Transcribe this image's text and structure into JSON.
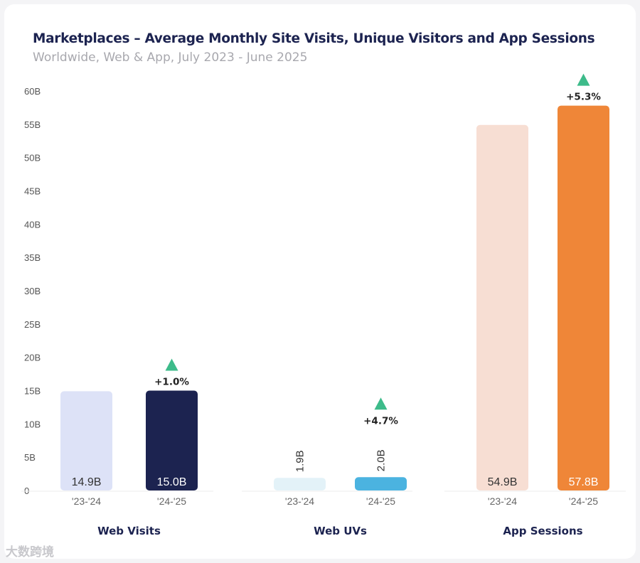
{
  "header": {
    "title": "Marketplaces – Average Monthly Site Visits, Unique Visitors and App Sessions",
    "subtitle": "Worldwide, Web & App, July 2023 - June 2025"
  },
  "watermark": "大数跨境",
  "chart_data": {
    "type": "bar",
    "title": "Marketplaces – Average Monthly Site Visits, Unique Visitors and App Sessions",
    "subtitle": "Worldwide, Web & App, July 2023 - June 2025",
    "ylim": [
      0,
      60
    ],
    "yticks": [
      0,
      5,
      10,
      15,
      20,
      25,
      30,
      35,
      40,
      45,
      50,
      55,
      60
    ],
    "ytick_labels": [
      "0",
      "5B",
      "10B",
      "15B",
      "20B",
      "25B",
      "30B",
      "35B",
      "40B",
      "45B",
      "50B",
      "55B",
      "60B"
    ],
    "grid": false,
    "groups": [
      {
        "name": "Web Visits",
        "bars": [
          {
            "period": "'23-'24",
            "value": 14.9,
            "label": "14.9B",
            "color": "#dde2f7"
          },
          {
            "period": "'24-'25",
            "value": 15.0,
            "label": "15.0B",
            "color": "#1c2350"
          }
        ],
        "change": "+1.0%"
      },
      {
        "name": "Web UVs",
        "bars": [
          {
            "period": "'23-'24",
            "value": 1.9,
            "label": "1.9B",
            "color": "#e3f2f8"
          },
          {
            "period": "'24-'25",
            "value": 2.0,
            "label": "2.0B",
            "color": "#4bb3e0"
          }
        ],
        "change": "+4.7%"
      },
      {
        "name": "App Sessions",
        "bars": [
          {
            "period": "'23-'24",
            "value": 54.9,
            "label": "54.9B",
            "color": "#f7ded3"
          },
          {
            "period": "'24-'25",
            "value": 57.8,
            "label": "57.8B",
            "color": "#ef8638"
          }
        ],
        "change": "+5.3%"
      }
    ],
    "up_color": "#3dbb8a"
  }
}
